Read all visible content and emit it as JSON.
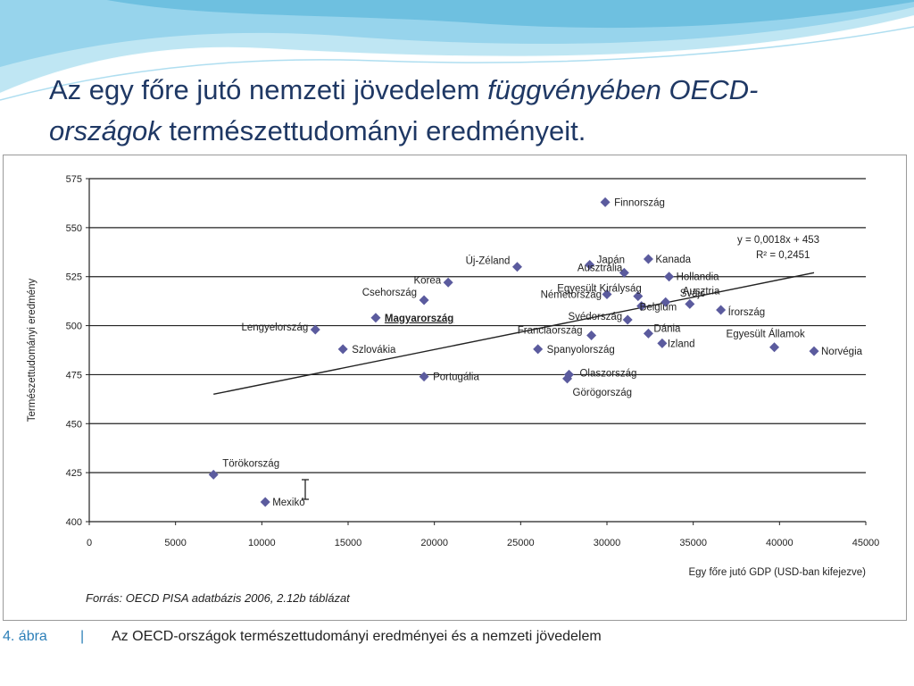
{
  "slide": {
    "title_part1": "Az egy főre jutó nemzeti jövedelem ",
    "title_italic1": "függvényében OECD-",
    "title_italic2": "országok",
    "title_part2": " természettudományi eredményeit."
  },
  "caption": {
    "number": "4. ábra",
    "separator": "|",
    "text": "Az OECD-országok természettudományi eredményei és a nemzeti jövedelem"
  },
  "source": "Forrás: OECD PISA adatbázis 2006, 2.12b táblázat",
  "colors": {
    "title": "#1f3864",
    "marker": "#5b5b9e",
    "highlight": "#2b8fd6",
    "equation": "#e02020",
    "wave_light": "#bfe6f3",
    "wave_mid": "#7cc7e3"
  },
  "chart_data": {
    "type": "scatter",
    "xlabel": "Egy főre jutó GDP (USD-ban kifejezve)",
    "ylabel": "Természettudományi eredmény",
    "xlim": [
      0,
      45000
    ],
    "ylim": [
      400,
      575
    ],
    "xticks": [
      0,
      5000,
      10000,
      15000,
      20000,
      25000,
      30000,
      35000,
      40000,
      45000
    ],
    "yticks": [
      400,
      425,
      450,
      475,
      500,
      525,
      550,
      575
    ],
    "grid": "horizontal",
    "trendline": {
      "equation": "y = 0,0018x + 453",
      "r2": "R² = 0,2451",
      "x_range": [
        7200,
        42000
      ],
      "y_range": [
        465,
        527
      ]
    },
    "points": [
      {
        "label": "Finnország",
        "x": 29900,
        "y": 563
      },
      {
        "label": "Kanada",
        "x": 32400,
        "y": 534
      },
      {
        "label": "Japán",
        "x": 29000,
        "y": 531
      },
      {
        "label": "Új-Zéland",
        "x": 24800,
        "y": 530
      },
      {
        "label": "Ausztrália",
        "x": 31000,
        "y": 527
      },
      {
        "label": "Hollandia",
        "x": 33600,
        "y": 525
      },
      {
        "label": "Korea",
        "x": 20800,
        "y": 522
      },
      {
        "label": "Egyesült Királyság",
        "x": 31800,
        "y": 515
      },
      {
        "label": "Németország",
        "x": 30000,
        "y": 516
      },
      {
        "label": "Ausztria",
        "x": 34800,
        "y": 511
      },
      {
        "label": "Csehország",
        "x": 19400,
        "y": 513
      },
      {
        "label": "Svájc",
        "x": 33400,
        "y": 512
      },
      {
        "label": "Belgium",
        "x": 32000,
        "y": 510
      },
      {
        "label": "Írország",
        "x": 36600,
        "y": 508
      },
      {
        "label": "Magyarország",
        "x": 16600,
        "y": 504,
        "highlight": true
      },
      {
        "label": "Svédország",
        "x": 31200,
        "y": 503
      },
      {
        "label": "Lengyelország",
        "x": 13100,
        "y": 498
      },
      {
        "label": "Franciaország",
        "x": 29100,
        "y": 495
      },
      {
        "label": "Dánia",
        "x": 32400,
        "y": 496
      },
      {
        "label": "Izland",
        "x": 33200,
        "y": 491
      },
      {
        "label": "Egyesült Államok",
        "x": 39700,
        "y": 489
      },
      {
        "label": "Szlovákia",
        "x": 14700,
        "y": 488
      },
      {
        "label": "Spanyolország",
        "x": 26000,
        "y": 488
      },
      {
        "label": "Norvégia",
        "x": 42000,
        "y": 487
      },
      {
        "label": "Olaszország",
        "x": 27800,
        "y": 475
      },
      {
        "label": "Portugália",
        "x": 19400,
        "y": 474
      },
      {
        "label": "Görögország",
        "x": 27700,
        "y": 473
      },
      {
        "label": "Törökország",
        "x": 7200,
        "y": 424
      },
      {
        "label": "Mexikó",
        "x": 10200,
        "y": 410
      }
    ]
  }
}
